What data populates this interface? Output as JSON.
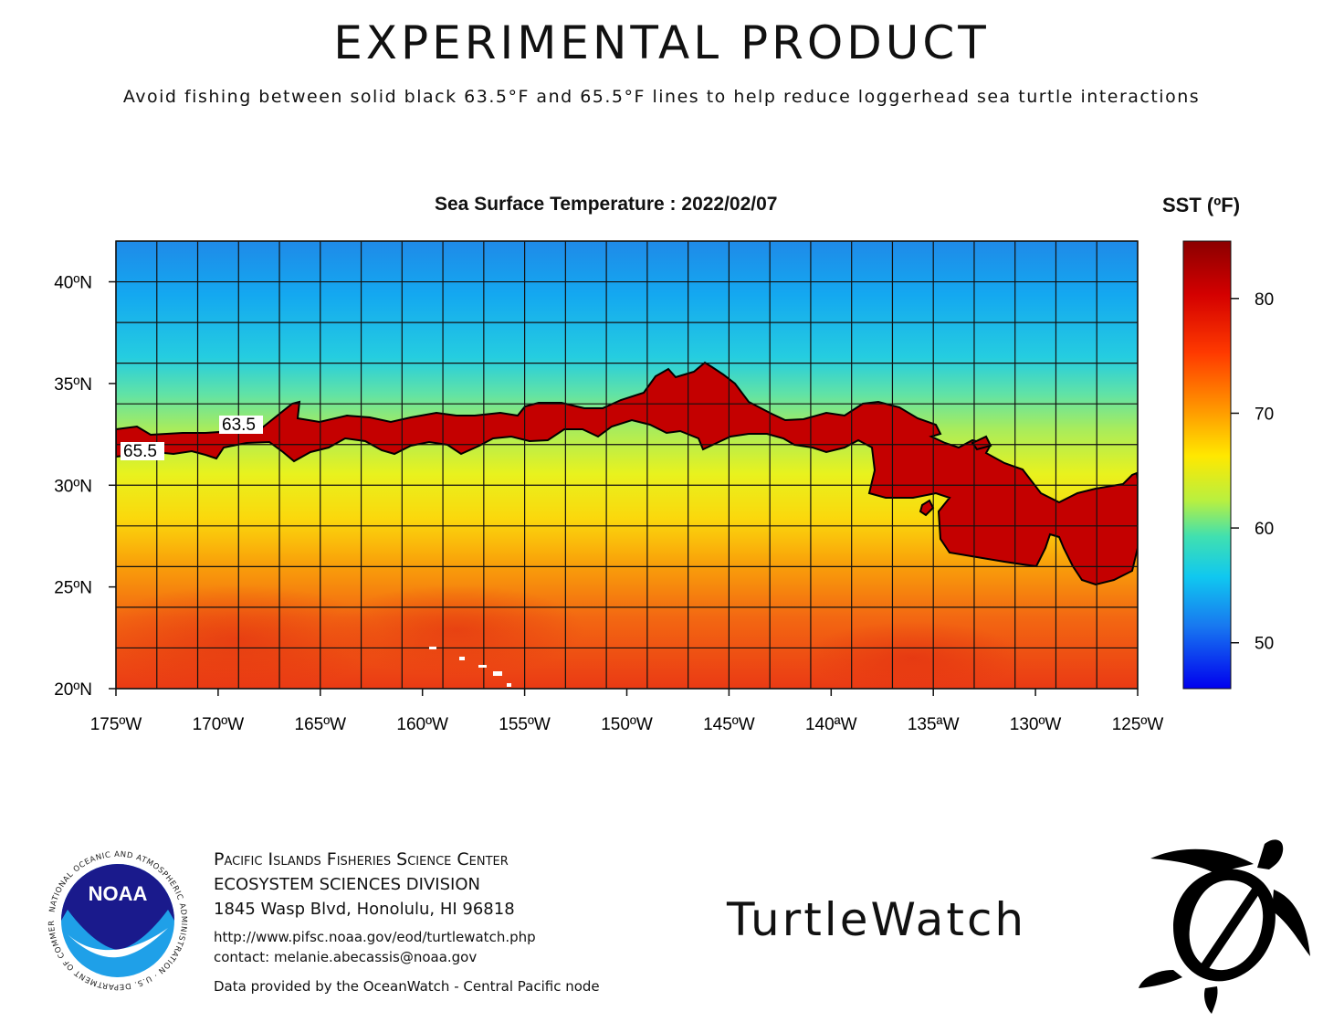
{
  "header": {
    "title": "EXPERIMENTAL PRODUCT",
    "subtitle": "Avoid fishing between solid black 63.5°F and 65.5°F lines to help reduce loggerhead sea turtle interactions"
  },
  "map": {
    "title": "Sea Surface Temperature : 2022/02/07",
    "lon_ticks": [
      "175ºW",
      "170ºW",
      "165ºW",
      "160ºW",
      "155ºW",
      "150ºW",
      "145ºW",
      "140ªW",
      "135ªW",
      "130ºW",
      "125ºW"
    ],
    "lat_ticks": [
      "40ºN",
      "35ºN",
      "30ºN",
      "25ºN",
      "20ºN"
    ],
    "contour_labels": [
      "63.5",
      "65.5"
    ],
    "lon_range": [
      -175,
      -125
    ],
    "lat_range": [
      20,
      42
    ],
    "avoid_zone_color": "#c40000"
  },
  "legend": {
    "title": "SST (ºF)",
    "ticks": [
      "80",
      "70",
      "60",
      "50"
    ],
    "range": [
      46,
      85
    ]
  },
  "footer": {
    "org": "Pacific Islands Fisheries Science Center",
    "division": "ECOSYSTEM SCIENCES DIVISION",
    "address": "1845 Wasp Blvd, Honolulu, HI 96818",
    "url": "http://www.pifsc.noaa.gov/eod/turtlewatch.php",
    "contact": "contact: melanie.abecassis@noaa.gov",
    "credit": "Data provided by the OceanWatch - Central Pacific node",
    "product_name": "TurtleWatch"
  },
  "logo": {
    "noaa_text": "NOAA",
    "ring_text": "NATIONAL OCEANIC AND ATMOSPHERIC ADMINISTRATION · U.S. DEPARTMENT OF COMMERCE"
  }
}
